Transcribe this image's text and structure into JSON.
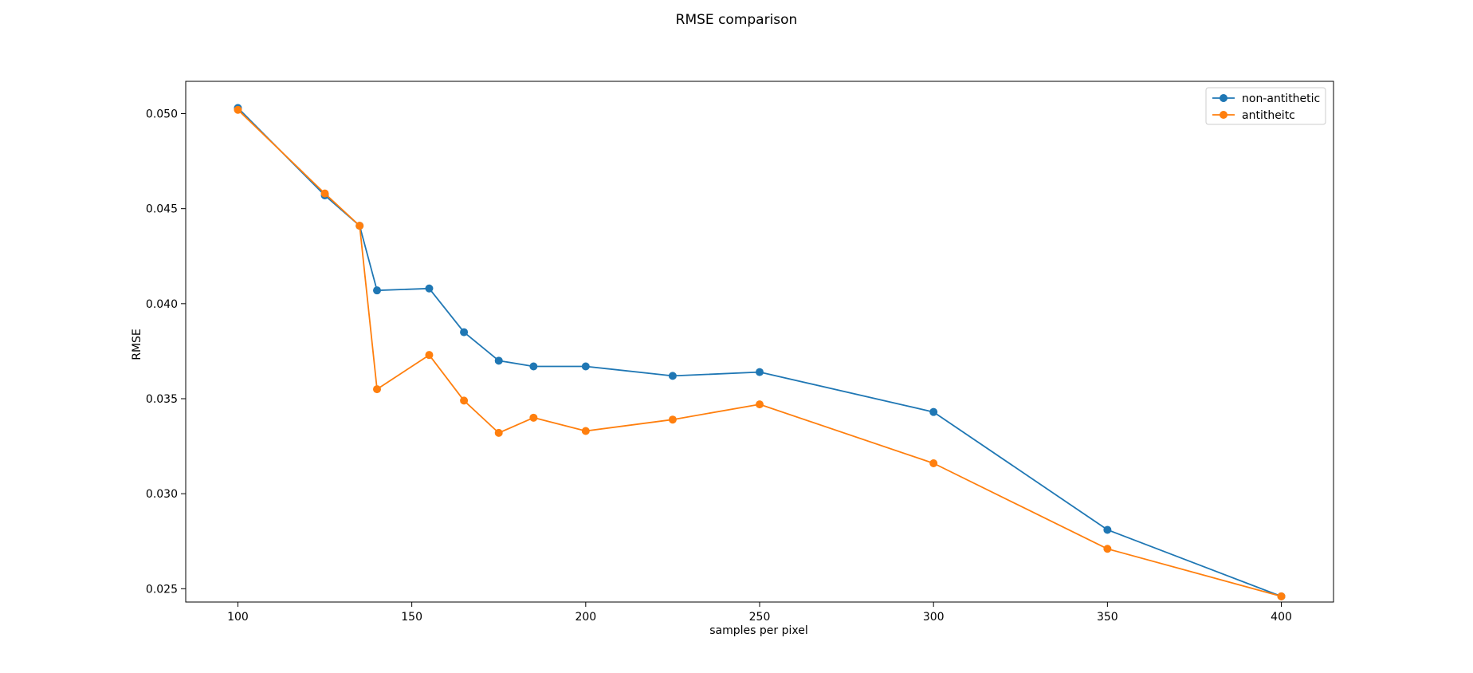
{
  "chart_data": {
    "type": "line",
    "title": "RMSE comparison",
    "xlabel": "samples per pixel",
    "ylabel": "RMSE",
    "xlim": [
      85,
      415
    ],
    "ylim": [
      0.0243,
      0.0517
    ],
    "xticks": [
      100,
      150,
      200,
      250,
      300,
      350,
      400
    ],
    "xtick_labels": [
      "100",
      "150",
      "200",
      "250",
      "300",
      "350",
      "400"
    ],
    "yticks": [
      0.025,
      0.03,
      0.035,
      0.04,
      0.045,
      0.05
    ],
    "ytick_labels": [
      "0.025",
      "0.030",
      "0.035",
      "0.040",
      "0.045",
      "0.050"
    ],
    "grid": false,
    "legend_position": "top-right",
    "x": [
      100,
      125,
      135,
      140,
      155,
      165,
      175,
      185,
      200,
      225,
      250,
      300,
      350,
      400
    ],
    "series": [
      {
        "name": "non-antithetic",
        "color": "#1f77b4",
        "values": [
          0.0503,
          0.0457,
          0.0441,
          0.0407,
          0.0408,
          0.0385,
          0.037,
          0.0367,
          0.0367,
          0.0362,
          0.0364,
          0.0343,
          0.0281,
          0.0246
        ]
      },
      {
        "name": "antitheitc",
        "color": "#ff7f0e",
        "values": [
          0.0502,
          0.0458,
          0.0441,
          0.0355,
          0.0373,
          0.0349,
          0.0332,
          0.034,
          0.0333,
          0.0339,
          0.0347,
          0.0316,
          0.0271,
          0.0246
        ]
      }
    ]
  }
}
